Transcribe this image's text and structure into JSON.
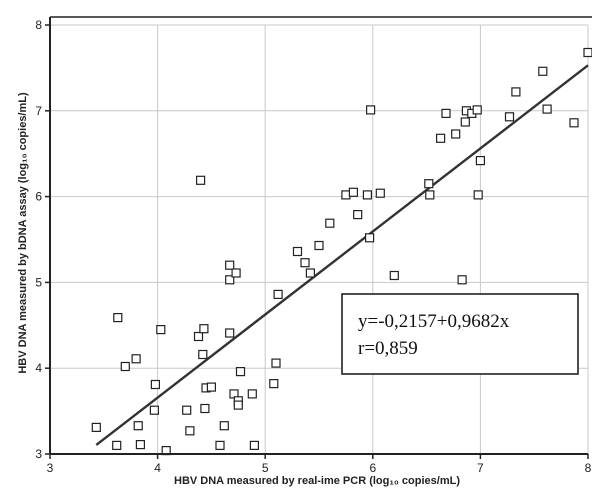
{
  "chart_data": {
    "type": "scatter",
    "xlabel": "HBV DNA measured by real-ime PCR (log₁₀ copies/mL)",
    "ylabel": "HBV DNA measured by bDNA assay (log₁₀ copies/mL)",
    "xlim": [
      3,
      8
    ],
    "ylim": [
      3,
      8
    ],
    "xticks": [
      "3",
      "4",
      "5",
      "6",
      "7",
      "8"
    ],
    "yticks": [
      "3",
      "4",
      "5",
      "6",
      "7",
      "8"
    ],
    "grid": true,
    "marker": "open-square",
    "colors": {
      "points": "#222222",
      "line": "#333333",
      "grid": "#c8c8c8",
      "axes": "#222222"
    },
    "points": [
      [
        3.43,
        3.31
      ],
      [
        3.62,
        3.1
      ],
      [
        3.63,
        4.59
      ],
      [
        3.7,
        4.02
      ],
      [
        3.8,
        4.11
      ],
      [
        3.82,
        3.33
      ],
      [
        3.84,
        3.11
      ],
      [
        3.97,
        3.51
      ],
      [
        3.98,
        3.81
      ],
      [
        4.03,
        4.45
      ],
      [
        4.08,
        3.04
      ],
      [
        4.27,
        3.51
      ],
      [
        4.3,
        3.27
      ],
      [
        4.38,
        4.37
      ],
      [
        4.4,
        6.19
      ],
      [
        4.42,
        4.16
      ],
      [
        4.43,
        4.46
      ],
      [
        4.44,
        3.53
      ],
      [
        4.45,
        3.77
      ],
      [
        4.5,
        3.78
      ],
      [
        4.58,
        3.1
      ],
      [
        4.62,
        3.33
      ],
      [
        4.67,
        5.2
      ],
      [
        4.67,
        5.03
      ],
      [
        4.67,
        4.41
      ],
      [
        4.71,
        3.7
      ],
      [
        4.73,
        5.11
      ],
      [
        4.75,
        3.62
      ],
      [
        4.75,
        3.57
      ],
      [
        4.77,
        3.96
      ],
      [
        4.88,
        3.7
      ],
      [
        4.9,
        3.1
      ],
      [
        5.08,
        3.82
      ],
      [
        5.1,
        4.06
      ],
      [
        5.12,
        4.86
      ],
      [
        5.3,
        5.36
      ],
      [
        5.37,
        5.23
      ],
      [
        5.42,
        5.11
      ],
      [
        5.5,
        5.43
      ],
      [
        5.6,
        5.69
      ],
      [
        5.75,
        6.02
      ],
      [
        5.82,
        6.05
      ],
      [
        5.86,
        5.79
      ],
      [
        5.95,
        6.02
      ],
      [
        5.97,
        5.52
      ],
      [
        5.98,
        7.01
      ],
      [
        6.07,
        6.04
      ],
      [
        6.2,
        5.08
      ],
      [
        6.52,
        6.15
      ],
      [
        6.53,
        6.02
      ],
      [
        6.63,
        6.68
      ],
      [
        6.68,
        6.97
      ],
      [
        6.77,
        6.73
      ],
      [
        6.83,
        5.03
      ],
      [
        6.86,
        6.87
      ],
      [
        6.87,
        7.0
      ],
      [
        6.92,
        6.97
      ],
      [
        6.97,
        7.01
      ],
      [
        6.98,
        6.02
      ],
      [
        7.0,
        6.42
      ],
      [
        7.27,
        6.93
      ],
      [
        7.33,
        7.22
      ],
      [
        7.58,
        7.46
      ],
      [
        7.62,
        7.02
      ],
      [
        7.87,
        6.86
      ],
      [
        8.0,
        7.68
      ]
    ],
    "regression": {
      "intercept": -0.2157,
      "slope": 0.9682,
      "x_range": [
        3.43,
        8.0
      ]
    },
    "annotations": {
      "equation": "y=-0,2157+0,9682x",
      "r": "r=0,859"
    }
  }
}
